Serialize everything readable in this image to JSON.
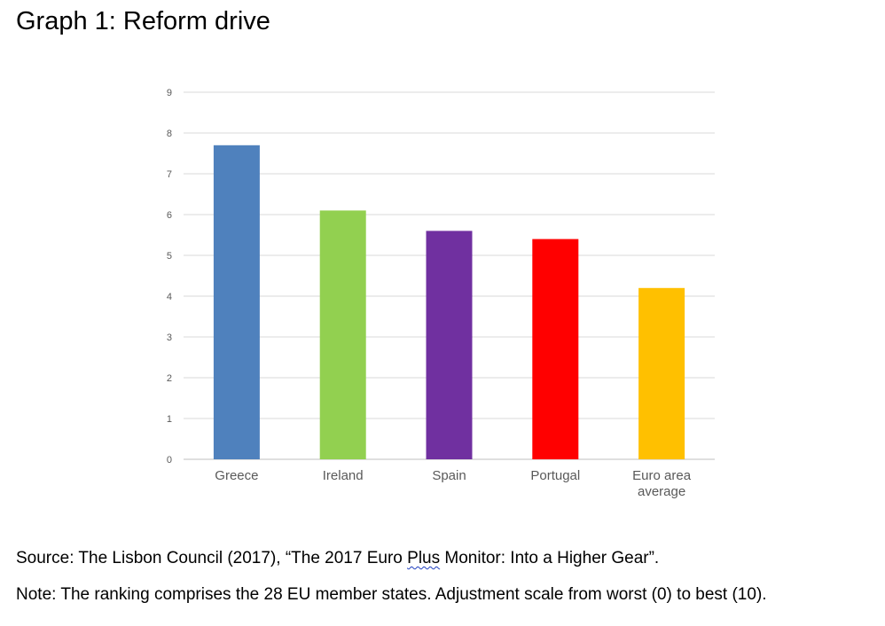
{
  "title": "Graph 1: Reform drive",
  "source": {
    "prefix": "Source: The Lisbon Council (2017), “The 2017 Euro ",
    "flagged_word": "Plus",
    "suffix": " Monitor: Into a Higher Gear”."
  },
  "note": "Note: The ranking comprises the 28 EU member states. Adjustment scale from worst (0) to best (10).",
  "chart_data": {
    "type": "bar",
    "title": "",
    "xlabel": "",
    "ylabel": "",
    "categories": [
      [
        "Greece"
      ],
      [
        "Ireland"
      ],
      [
        "Spain"
      ],
      [
        "Portugal"
      ],
      [
        "Euro area",
        "average"
      ]
    ],
    "values": [
      7.7,
      6.1,
      5.6,
      5.4,
      4.2
    ],
    "colors": [
      "#4f81bd",
      "#92d050",
      "#7030a0",
      "#ff0000",
      "#ffc000"
    ],
    "ylim": [
      0,
      9
    ],
    "yticks": [
      0,
      1,
      2,
      3,
      4,
      5,
      6,
      7,
      8,
      9
    ],
    "grid": true,
    "gridColor": "#d9d9d9",
    "legend": "none"
  }
}
